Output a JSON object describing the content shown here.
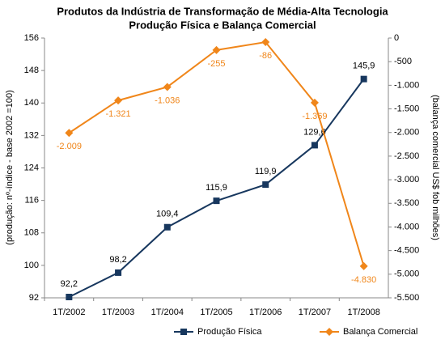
{
  "chart_data": {
    "type": "line",
    "title": "Produtos da Indústria de Transformação de Média-Alta Tecnologia",
    "subtitle": "Produção Física e Balança Comercial",
    "ylabel": "(produção: nº-índice - base 2002 =100)",
    "y2label": "(balança comercial US$ fob milhões)",
    "categories": [
      "1T/2002",
      "1T/2003",
      "1T/2004",
      "1T/2005",
      "1T/2006",
      "1T/2007",
      "1T/2008"
    ],
    "series": [
      {
        "name": "Produção Física",
        "color": "#17375e",
        "marker": "square",
        "values": [
          92.2,
          98.2,
          109.4,
          115.9,
          119.9,
          129.6,
          145.9
        ],
        "value_labels": [
          "92,2",
          "98,2",
          "109,4",
          "115,9",
          "119,9",
          "129,6",
          "145,9"
        ]
      },
      {
        "name": "Balança Comercial",
        "color": "#f0861a",
        "marker": "diamond",
        "axis": "y2",
        "values": [
          -2009,
          -1321,
          -1036,
          -255,
          -86,
          -1369,
          -4830
        ],
        "value_labels": [
          "-2.009",
          "-1.321",
          "-1.036",
          "-255",
          "-86",
          "-1.369",
          "-4.830"
        ]
      }
    ],
    "ylim": [
      92,
      156
    ],
    "yticks": [
      92,
      100,
      108,
      116,
      124,
      132,
      140,
      148,
      156
    ],
    "y2lim": [
      -5500,
      0
    ],
    "y2ticks": [
      {
        "value": -5500,
        "label": "-5.500"
      },
      {
        "value": -5000,
        "label": "-5.000"
      },
      {
        "value": -4500,
        "label": "-4.500"
      },
      {
        "value": -4000,
        "label": "-4.000"
      },
      {
        "value": -3500,
        "label": "-3.500"
      },
      {
        "value": -3000,
        "label": "-3.000"
      },
      {
        "value": -2500,
        "label": "-2.500"
      },
      {
        "value": -2000,
        "label": "-2.000"
      },
      {
        "value": -1500,
        "label": "-1.500"
      },
      {
        "value": -1000,
        "label": "-1.000"
      },
      -500,
      0
    ],
    "legend": "bottom"
  }
}
